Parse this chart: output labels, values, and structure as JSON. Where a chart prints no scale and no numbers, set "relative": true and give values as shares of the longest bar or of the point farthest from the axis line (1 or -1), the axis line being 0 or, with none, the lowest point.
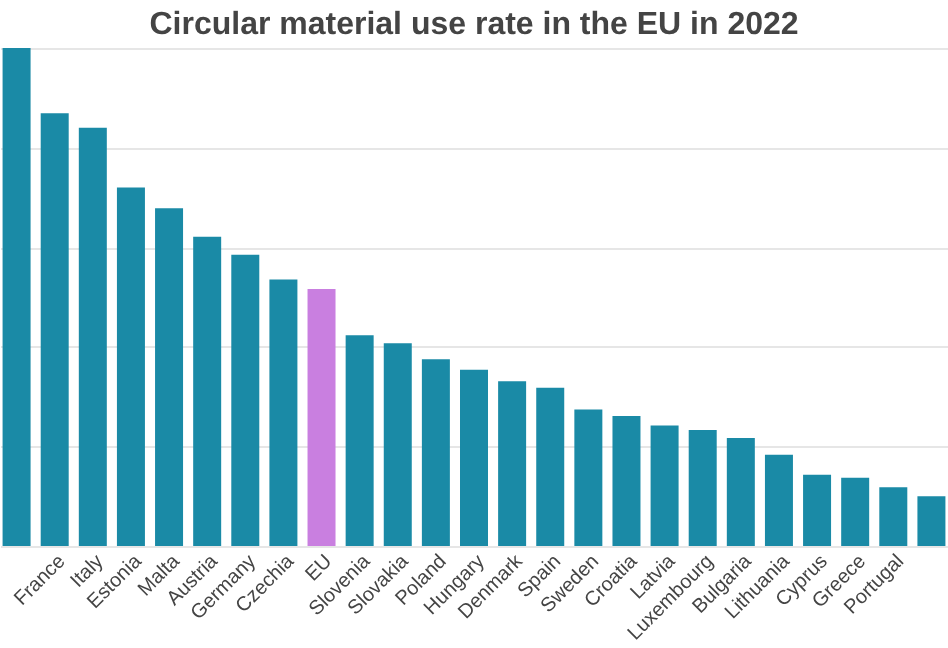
{
  "chart_data": {
    "type": "bar",
    "title": "Circular material use rate in the EU in 2022",
    "relative": true,
    "grid": "y",
    "categories": [
      null,
      "France",
      "Italy",
      "Estonia",
      "Malta",
      "Austria",
      "Germany",
      "Czechia",
      "EU",
      "Slovenia",
      "Slovakia",
      "Poland",
      "Hungary",
      "Denmark",
      "Spain",
      "Sweden",
      "Croatia",
      "Latvia",
      "Luxembourg",
      "Bulgaria",
      "Lithuania",
      "Cyprus",
      "Greece",
      "Portugal",
      null
    ],
    "values": [
      1,
      0.869,
      0.84,
      0.72,
      0.678,
      0.621,
      0.585,
      0.535,
      0.516,
      0.423,
      0.407,
      0.375,
      0.354,
      0.331,
      0.318,
      0.274,
      0.261,
      0.242,
      0.233,
      0.217,
      0.183,
      0.143,
      0.137,
      0.118,
      0.1
    ],
    "colors": [
      "#1a8aa6",
      "#1a8aa6",
      "#1a8aa6",
      "#1a8aa6",
      "#1a8aa6",
      "#1a8aa6",
      "#1a8aa6",
      "#1a8aa6",
      "#c97fe0",
      "#1a8aa6",
      "#1a8aa6",
      "#1a8aa6",
      "#1a8aa6",
      "#1a8aa6",
      "#1a8aa6",
      "#1a8aa6",
      "#1a8aa6",
      "#1a8aa6",
      "#1a8aa6",
      "#1a8aa6",
      "#1a8aa6",
      "#1a8aa6",
      "#1a8aa6",
      "#1a8aa6",
      "#1a8aa6"
    ]
  }
}
